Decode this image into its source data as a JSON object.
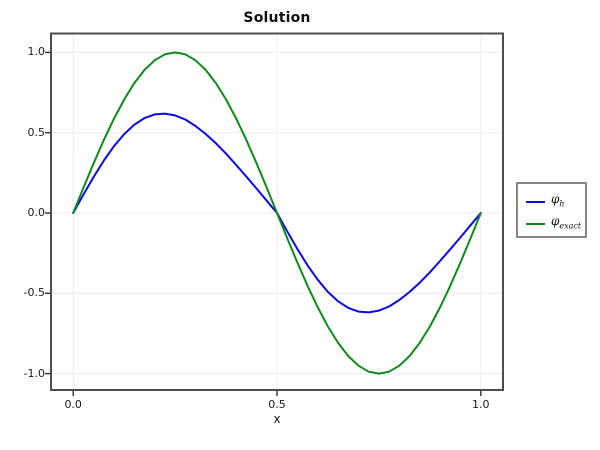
{
  "title": "Solution",
  "axes": {
    "xlabel": "x",
    "x_ticks": {
      "values": [
        0.0,
        0.5,
        1.0
      ],
      "labels": [
        "0.0",
        "0.5",
        "1.0"
      ]
    },
    "y_ticks": {
      "values": [
        1.0,
        0.5,
        0.0,
        -0.5,
        -1.0
      ],
      "labels": [
        "1.0",
        "0.5",
        "0.0",
        "-0.5",
        "-1.0"
      ]
    }
  },
  "legend": {
    "items": [
      {
        "base": "φ",
        "sub": "h",
        "color": "#0808e8"
      },
      {
        "base": "φ",
        "sub": "exact",
        "color": "#0b8c18"
      }
    ]
  },
  "chart_data": {
    "type": "line",
    "title": "Solution",
    "xlabel": "x",
    "ylabel": "",
    "xlim": [
      -0.05,
      1.05
    ],
    "ylim": [
      -1.12,
      1.12
    ],
    "grid": true,
    "legend_position": "outside-right",
    "x": [
      0,
      0.025,
      0.05,
      0.075,
      0.1,
      0.125,
      0.15,
      0.175,
      0.2,
      0.225,
      0.25,
      0.275,
      0.3,
      0.325,
      0.35,
      0.375,
      0.4,
      0.425,
      0.45,
      0.475,
      0.5,
      0.525,
      0.55,
      0.575,
      0.6,
      0.625,
      0.65,
      0.675,
      0.7,
      0.725,
      0.75,
      0.775,
      0.8,
      0.825,
      0.85,
      0.875,
      0.9,
      0.925,
      0.95,
      0.975,
      1.0
    ],
    "series": [
      {
        "name": "φ_h",
        "color": "#0808e8",
        "values": [
          0,
          0.114,
          0.224,
          0.326,
          0.416,
          0.491,
          0.55,
          0.591,
          0.614,
          0.619,
          0.608,
          0.582,
          0.542,
          0.492,
          0.434,
          0.369,
          0.299,
          0.226,
          0.152,
          0.076,
          0,
          -0.114,
          -0.224,
          -0.326,
          -0.416,
          -0.491,
          -0.55,
          -0.591,
          -0.614,
          -0.619,
          -0.608,
          -0.582,
          -0.542,
          -0.492,
          -0.434,
          -0.369,
          -0.299,
          -0.226,
          -0.152,
          -0.076,
          0
        ]
      },
      {
        "name": "φ_exact",
        "color": "#0b8c18",
        "values": [
          0,
          0.156,
          0.309,
          0.454,
          0.588,
          0.707,
          0.809,
          0.891,
          0.951,
          0.988,
          1.0,
          0.988,
          0.951,
          0.891,
          0.809,
          0.707,
          0.588,
          0.454,
          0.309,
          0.156,
          0,
          -0.156,
          -0.309,
          -0.454,
          -0.588,
          -0.707,
          -0.809,
          -0.891,
          -0.951,
          -0.988,
          -1.0,
          -0.988,
          -0.951,
          -0.891,
          -0.809,
          -0.707,
          -0.588,
          -0.454,
          -0.309,
          -0.156,
          0
        ]
      }
    ]
  }
}
